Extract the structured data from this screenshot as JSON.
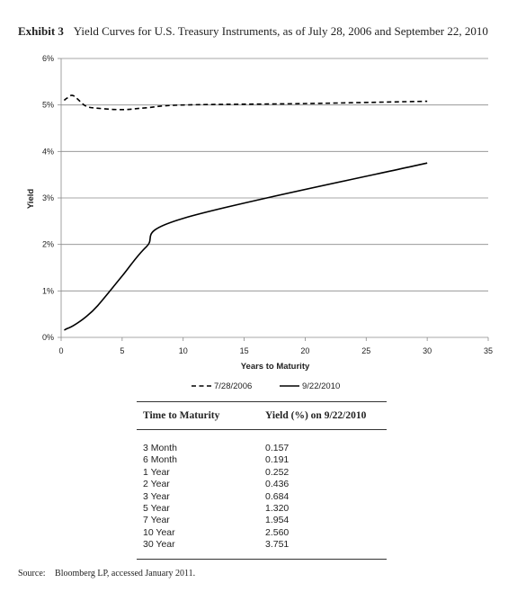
{
  "exhibit": {
    "label": "Exhibit 3",
    "title": "Yield Curves for U.S. Treasury Instruments, as of July 28, 2006 and September 22, 2010"
  },
  "chart_data": {
    "type": "line",
    "title": "",
    "xlabel": "Years to Maturity",
    "ylabel": "Yield",
    "xlim": [
      0,
      35
    ],
    "ylim": [
      0,
      6
    ],
    "x_ticks": [
      "0",
      "5",
      "10",
      "15",
      "20",
      "25",
      "30",
      "35"
    ],
    "y_ticks": [
      "0%",
      "1%",
      "2%",
      "3%",
      "4%",
      "5%",
      "6%"
    ],
    "grid": "horizontal",
    "legend_position": "bottom",
    "series": [
      {
        "name": "7/28/2006",
        "style": "dashed",
        "color": "#000000",
        "x": [
          0.25,
          0.5,
          1,
          2,
          3,
          5,
          7,
          10,
          20,
          30
        ],
        "y": [
          5.1,
          5.15,
          5.2,
          4.98,
          4.93,
          4.9,
          4.94,
          5.0,
          5.03,
          5.08
        ]
      },
      {
        "name": "9/22/2010",
        "style": "solid",
        "color": "#000000",
        "x": [
          0.25,
          0.5,
          1,
          2,
          3,
          5,
          7,
          10,
          30
        ],
        "y": [
          0.157,
          0.191,
          0.252,
          0.436,
          0.684,
          1.32,
          1.954,
          2.56,
          3.751
        ]
      }
    ]
  },
  "table": {
    "headers": [
      "Time to Maturity",
      "Yield (%) on 9/22/2010"
    ],
    "rows": [
      [
        "3 Month",
        "0.157"
      ],
      [
        "6 Month",
        "0.191"
      ],
      [
        "1 Year",
        "0.252"
      ],
      [
        "2 Year",
        "0.436"
      ],
      [
        "3 Year",
        "0.684"
      ],
      [
        "5 Year",
        "1.320"
      ],
      [
        "7 Year",
        "1.954"
      ],
      [
        "10 Year",
        "2.560"
      ],
      [
        "30 Year",
        "3.751"
      ]
    ]
  },
  "source": {
    "label": "Source:",
    "text": "Bloomberg LP, accessed January 2011."
  }
}
